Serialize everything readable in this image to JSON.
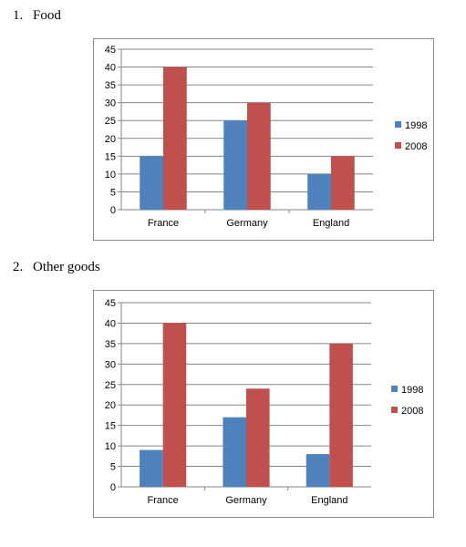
{
  "sections": [
    {
      "number": "1.",
      "title": "Food"
    },
    {
      "number": "2.",
      "title": "Other goods"
    }
  ],
  "colors": {
    "series_1998": "#4f81bd",
    "series_2008": "#c0504d",
    "gridline": "#868686",
    "frame": "#8c8c8c"
  },
  "chart_data": [
    {
      "type": "bar",
      "categories": [
        "France",
        "Germany",
        "England"
      ],
      "series": [
        {
          "name": "1998",
          "values": [
            15,
            25,
            10
          ]
        },
        {
          "name": "2008",
          "values": [
            40,
            30,
            15
          ]
        }
      ],
      "ylim": [
        0,
        45
      ],
      "yticks": [
        "0",
        "5",
        "10",
        "15",
        "20",
        "25",
        "30",
        "35",
        "40",
        "45"
      ],
      "grid": true,
      "legend": "right"
    },
    {
      "type": "bar",
      "categories": [
        "France",
        "Germany",
        "England"
      ],
      "series": [
        {
          "name": "1998",
          "values": [
            9,
            17,
            8
          ]
        },
        {
          "name": "2008",
          "values": [
            40,
            24,
            35
          ]
        }
      ],
      "ylim": [
        0,
        45
      ],
      "yticks": [
        "0",
        "5",
        "10",
        "15",
        "20",
        "25",
        "30",
        "35",
        "40",
        "45"
      ],
      "grid": true,
      "legend": "right"
    }
  ]
}
